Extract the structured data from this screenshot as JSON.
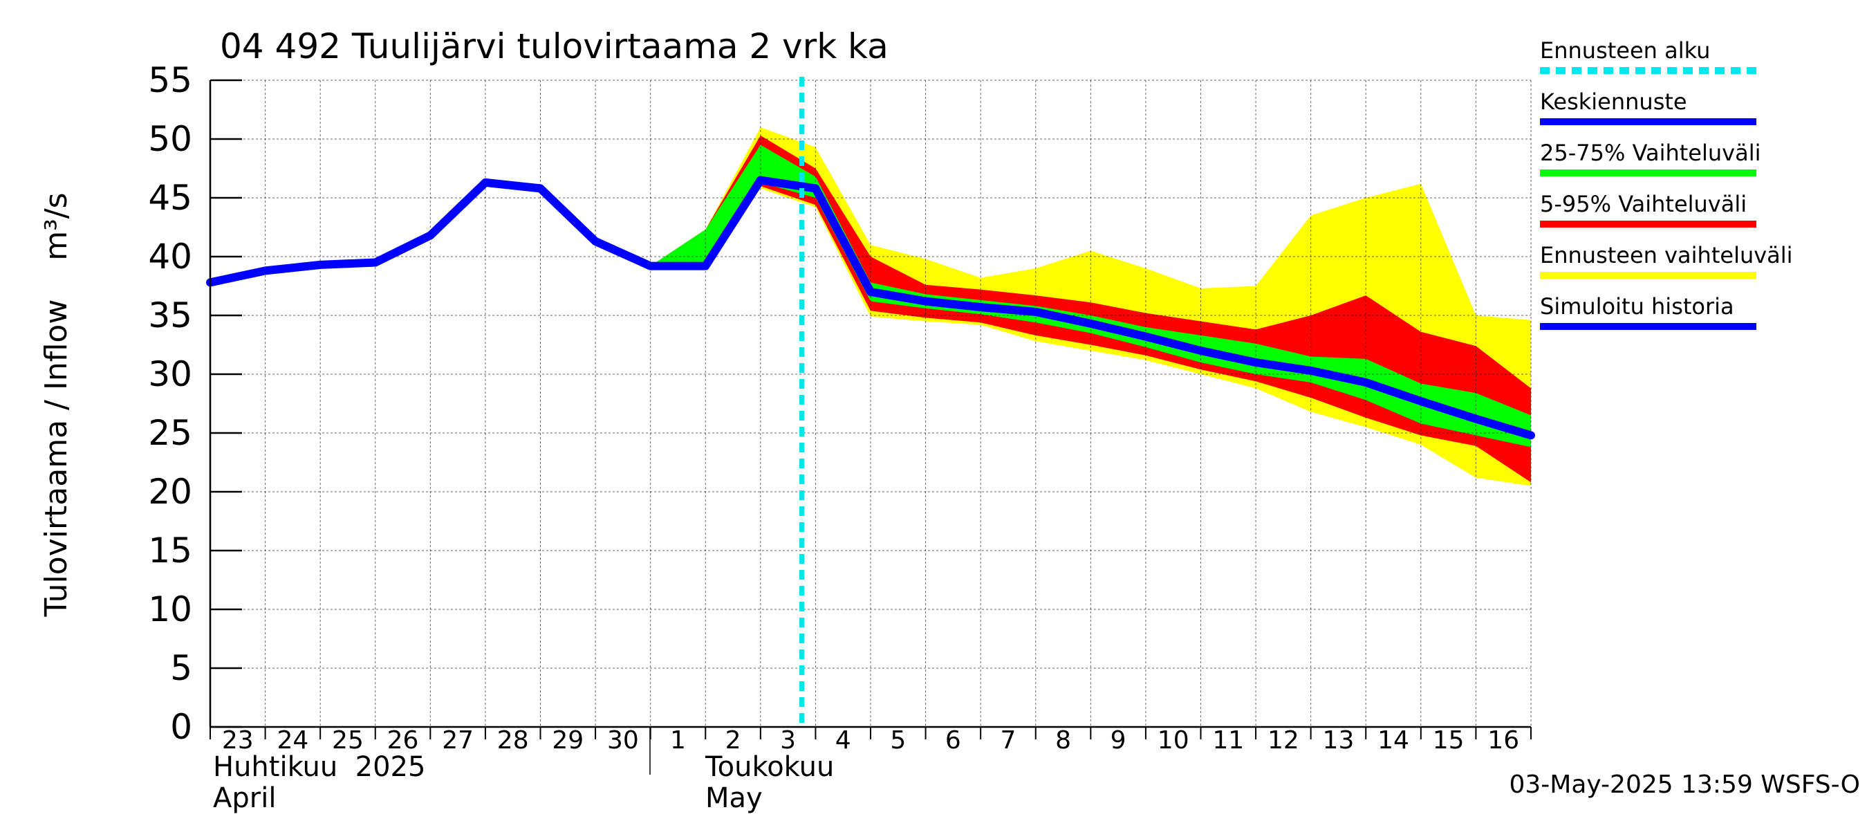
{
  "chart_data": {
    "type": "area",
    "title": "04 492 Tuulijärvi tulovirtaama 2 vrk ka",
    "ylabel": "Tulovirtaama / Inflow    m³/s",
    "ylim": [
      0,
      55
    ],
    "yticks": [
      0,
      5,
      10,
      15,
      20,
      25,
      30,
      35,
      40,
      45,
      50,
      55
    ],
    "grid": true,
    "legend_position": "right",
    "day_labels": [
      "23",
      "24",
      "25",
      "26",
      "27",
      "28",
      "29",
      "30",
      "1",
      "2",
      "3",
      "4",
      "5",
      "6",
      "7",
      "8",
      "9",
      "10",
      "11",
      "12",
      "13",
      "14",
      "15",
      "16"
    ],
    "month_labels": [
      {
        "fi": "Huhtikuu  2025",
        "en": "April"
      },
      {
        "fi": "Toukokuu",
        "en": "May"
      }
    ],
    "forecast_start": 10.75,
    "timestamp": "03-May-2025 13:59 WSFS-O",
    "legend": [
      {
        "label": "Ennusteen alku",
        "color": "#00e5ee",
        "style": "dashed"
      },
      {
        "label": "Keskiennuste",
        "color": "#0000ff",
        "style": "line"
      },
      {
        "label": "25-75% Vaihteluväli",
        "color": "#00ff00",
        "style": "line"
      },
      {
        "label": "5-95% Vaihteluväli",
        "color": "#ff0000",
        "style": "line"
      },
      {
        "label": "Ennusteen vaihteluväli",
        "color": "#ffff00",
        "style": "line"
      },
      {
        "label": "Simuloitu historia",
        "color": "#0000ff",
        "style": "line"
      }
    ],
    "history": {
      "name": "Simuloitu historia",
      "x": [
        0,
        1,
        2,
        3,
        4,
        5,
        6,
        7,
        8,
        9,
        10
      ],
      "y": [
        37.8,
        38.8,
        39.3,
        39.5,
        41.8,
        46.3,
        45.8,
        41.3,
        39.2,
        39.2,
        46.5
      ]
    },
    "forecast_median": {
      "name": "Keskiennuste",
      "x": [
        10,
        11,
        12,
        13,
        14,
        15,
        16,
        17,
        18,
        19,
        20,
        21,
        22,
        23,
        24
      ],
      "y": [
        46.5,
        45.8,
        37.0,
        36.2,
        35.7,
        35.3,
        34.3,
        33.2,
        32.0,
        31.0,
        30.3,
        29.3,
        27.7,
        26.2,
        24.8
      ]
    },
    "bands": [
      {
        "name": "Ennusteen vaihteluväli",
        "color": "#ffff00",
        "x": [
          8,
          9,
          10,
          11,
          12,
          13,
          14,
          15,
          16,
          17,
          18,
          19,
          20,
          21,
          22,
          23,
          24
        ],
        "upper": [
          39.2,
          42.3,
          51.0,
          49.3,
          41.0,
          39.8,
          38.2,
          39.0,
          40.5,
          39.0,
          37.3,
          37.5,
          43.5,
          45.0,
          46.2,
          35.0,
          34.6
        ],
        "lower": [
          39.2,
          39.2,
          45.8,
          44.2,
          34.9,
          34.5,
          34.2,
          32.8,
          32.0,
          31.2,
          30.0,
          28.8,
          26.8,
          25.5,
          24.0,
          21.2,
          20.5
        ]
      },
      {
        "name": "5-95% Vaihteluväli",
        "color": "#ff0000",
        "x": [
          8,
          9,
          10,
          11,
          12,
          13,
          14,
          15,
          16,
          17,
          18,
          19,
          20,
          21,
          22,
          23,
          24
        ],
        "upper": [
          39.2,
          42.3,
          50.3,
          47.5,
          40.0,
          37.6,
          37.2,
          36.7,
          36.1,
          35.2,
          34.5,
          33.8,
          35.0,
          36.7,
          33.6,
          32.4,
          28.8
        ],
        "lower": [
          39.2,
          39.2,
          46.0,
          44.4,
          35.4,
          34.8,
          34.4,
          33.3,
          32.5,
          31.6,
          30.4,
          29.4,
          28.0,
          26.3,
          24.8,
          23.9,
          20.8
        ]
      },
      {
        "name": "25-75% Vaihteluväli",
        "color": "#00ff00",
        "x": [
          8,
          9,
          10,
          11,
          12,
          13,
          14,
          15,
          16,
          17,
          18,
          19,
          20,
          21,
          22,
          23,
          24
        ],
        "upper": [
          39.2,
          42.3,
          49.5,
          46.8,
          37.8,
          36.8,
          36.3,
          35.8,
          35.0,
          34.0,
          33.3,
          32.6,
          31.5,
          31.3,
          29.2,
          28.4,
          26.5
        ],
        "lower": [
          39.2,
          39.2,
          46.3,
          45.0,
          36.2,
          35.6,
          35.1,
          34.4,
          33.5,
          32.3,
          31.0,
          30.0,
          29.3,
          27.8,
          25.8,
          24.8,
          23.8
        ]
      }
    ]
  }
}
